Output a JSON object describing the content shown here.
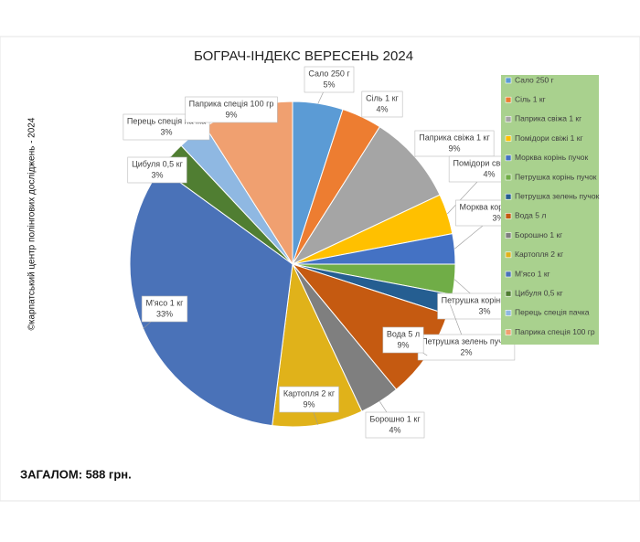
{
  "chart_data": {
    "type": "pie",
    "title": "БОГРАЧ-ІНДЕКС ВЕРЕСЕНЬ 2024",
    "source": "©карпатський центр полінгових досліджень - 2024",
    "total_text": "ЗАГАЛОМ: 588 грн.",
    "categories": [
      "Сало 250 г",
      "Сіль 1 кг",
      "Паприка свіжа 1 кг",
      "Помідори свіжі 1 кг",
      "Морква корінь пучок",
      "Петрушка корінь пучок",
      "Петрушка зелень пучок",
      "Вода 5 л",
      "Борошно 1 кг",
      "Картопля 2 кг",
      "М'ясо 1 кг",
      "Цибуля 0,5 кг",
      "Перець спеція пачка",
      "Паприка спеція 100 гр"
    ],
    "values": [
      5,
      4,
      9,
      4,
      3,
      3,
      2,
      9,
      4,
      9,
      33,
      3,
      3,
      9
    ],
    "value_labels": [
      "5%",
      "4%",
      "9%",
      "4%",
      "3%",
      "3%",
      "2%",
      "9%",
      "4%",
      "9%",
      "33%",
      "3%",
      "3%",
      "9%"
    ],
    "colors": [
      "#5b9bd5",
      "#ed7d31",
      "#a5a5a5",
      "#ffc000",
      "#4472c4",
      "#70ad47",
      "#255e91",
      "#c55a11",
      "#7f7f7f",
      "#e0b21a",
      "#4a72b8",
      "#507e32",
      "#8fb8e2",
      "#f0a070"
    ],
    "legend": "right"
  }
}
